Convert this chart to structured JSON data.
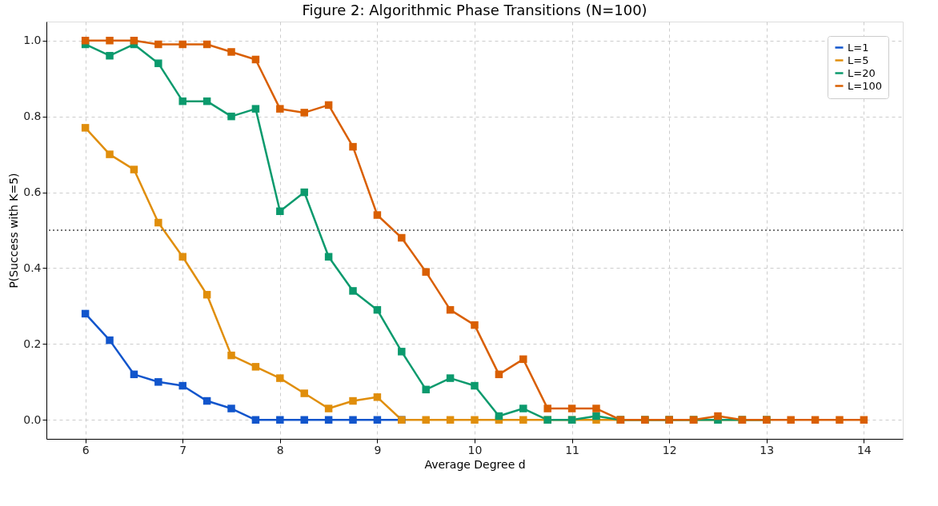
{
  "chart_data": {
    "type": "line",
    "title": "Figure 2: Algorithmic Phase Transitions (N=100)",
    "xlabel": "Average Degree d",
    "ylabel": "P(Success with K=5)",
    "x": [
      6,
      6.25,
      6.5,
      6.75,
      7,
      7.25,
      7.5,
      7.75,
      8,
      8.25,
      8.5,
      8.75,
      9,
      9.25,
      9.5,
      9.75,
      10,
      10.25,
      10.5,
      10.75,
      11,
      11.25,
      11.5,
      11.75,
      12,
      12.25,
      12.5,
      12.75,
      13,
      13.25,
      13.5,
      13.75,
      14
    ],
    "series": [
      {
        "name": "L=1",
        "color": "#1155cc",
        "values": [
          0.28,
          0.21,
          0.12,
          0.1,
          0.09,
          0.05,
          0.03,
          0,
          0,
          0,
          0,
          0,
          0,
          0,
          null,
          null,
          null,
          null,
          null,
          null,
          null,
          null,
          null,
          null,
          null,
          null,
          null,
          null,
          null,
          null,
          null,
          null,
          null
        ]
      },
      {
        "name": "L=5",
        "color": "#e08e0b",
        "values": [
          0.77,
          0.7,
          0.66,
          0.52,
          0.43,
          0.33,
          0.17,
          0.14,
          0.11,
          0.07,
          0.03,
          0.05,
          0.06,
          0,
          0,
          0,
          0,
          0,
          0,
          0,
          0,
          0,
          0,
          0,
          0,
          0,
          0,
          0,
          0,
          null,
          null,
          null,
          null
        ]
      },
      {
        "name": "L=20",
        "color": "#0b9a6d",
        "values": [
          0.99,
          0.96,
          0.99,
          0.94,
          0.84,
          0.84,
          0.8,
          0.82,
          0.55,
          0.6,
          0.43,
          0.34,
          0.29,
          0.18,
          0.08,
          0.11,
          0.09,
          0.01,
          0.03,
          0,
          0,
          0.01,
          0,
          0,
          0,
          0,
          0,
          0,
          0,
          null,
          null,
          null,
          null
        ]
      },
      {
        "name": "L=100",
        "color": "#d95f02",
        "values": [
          1.0,
          1.0,
          1.0,
          0.99,
          0.99,
          0.99,
          0.97,
          0.95,
          0.82,
          0.81,
          0.83,
          0.72,
          0.54,
          0.48,
          0.39,
          0.29,
          0.25,
          0.12,
          0.16,
          0.03,
          0.03,
          0.03,
          0,
          0,
          0,
          0,
          0.01,
          0,
          0,
          0,
          0,
          0,
          0
        ]
      }
    ],
    "xlim": [
      5.6,
      14.4
    ],
    "ylim": [
      -0.05,
      1.05
    ],
    "xticks": [
      6,
      7,
      8,
      9,
      10,
      11,
      12,
      13,
      14
    ],
    "yticks": [
      {
        "value": 0,
        "label": "0.0"
      },
      0.2,
      0.4,
      0.6,
      0.8,
      {
        "value": 1,
        "label": "1.0"
      }
    ],
    "ref_lines": [
      {
        "axis": "y",
        "value": 0.5,
        "color": "#777777",
        "line_style": "dotted"
      }
    ],
    "grid": true,
    "legend": "top right",
    "marker": "square",
    "line_style": "solid"
  }
}
